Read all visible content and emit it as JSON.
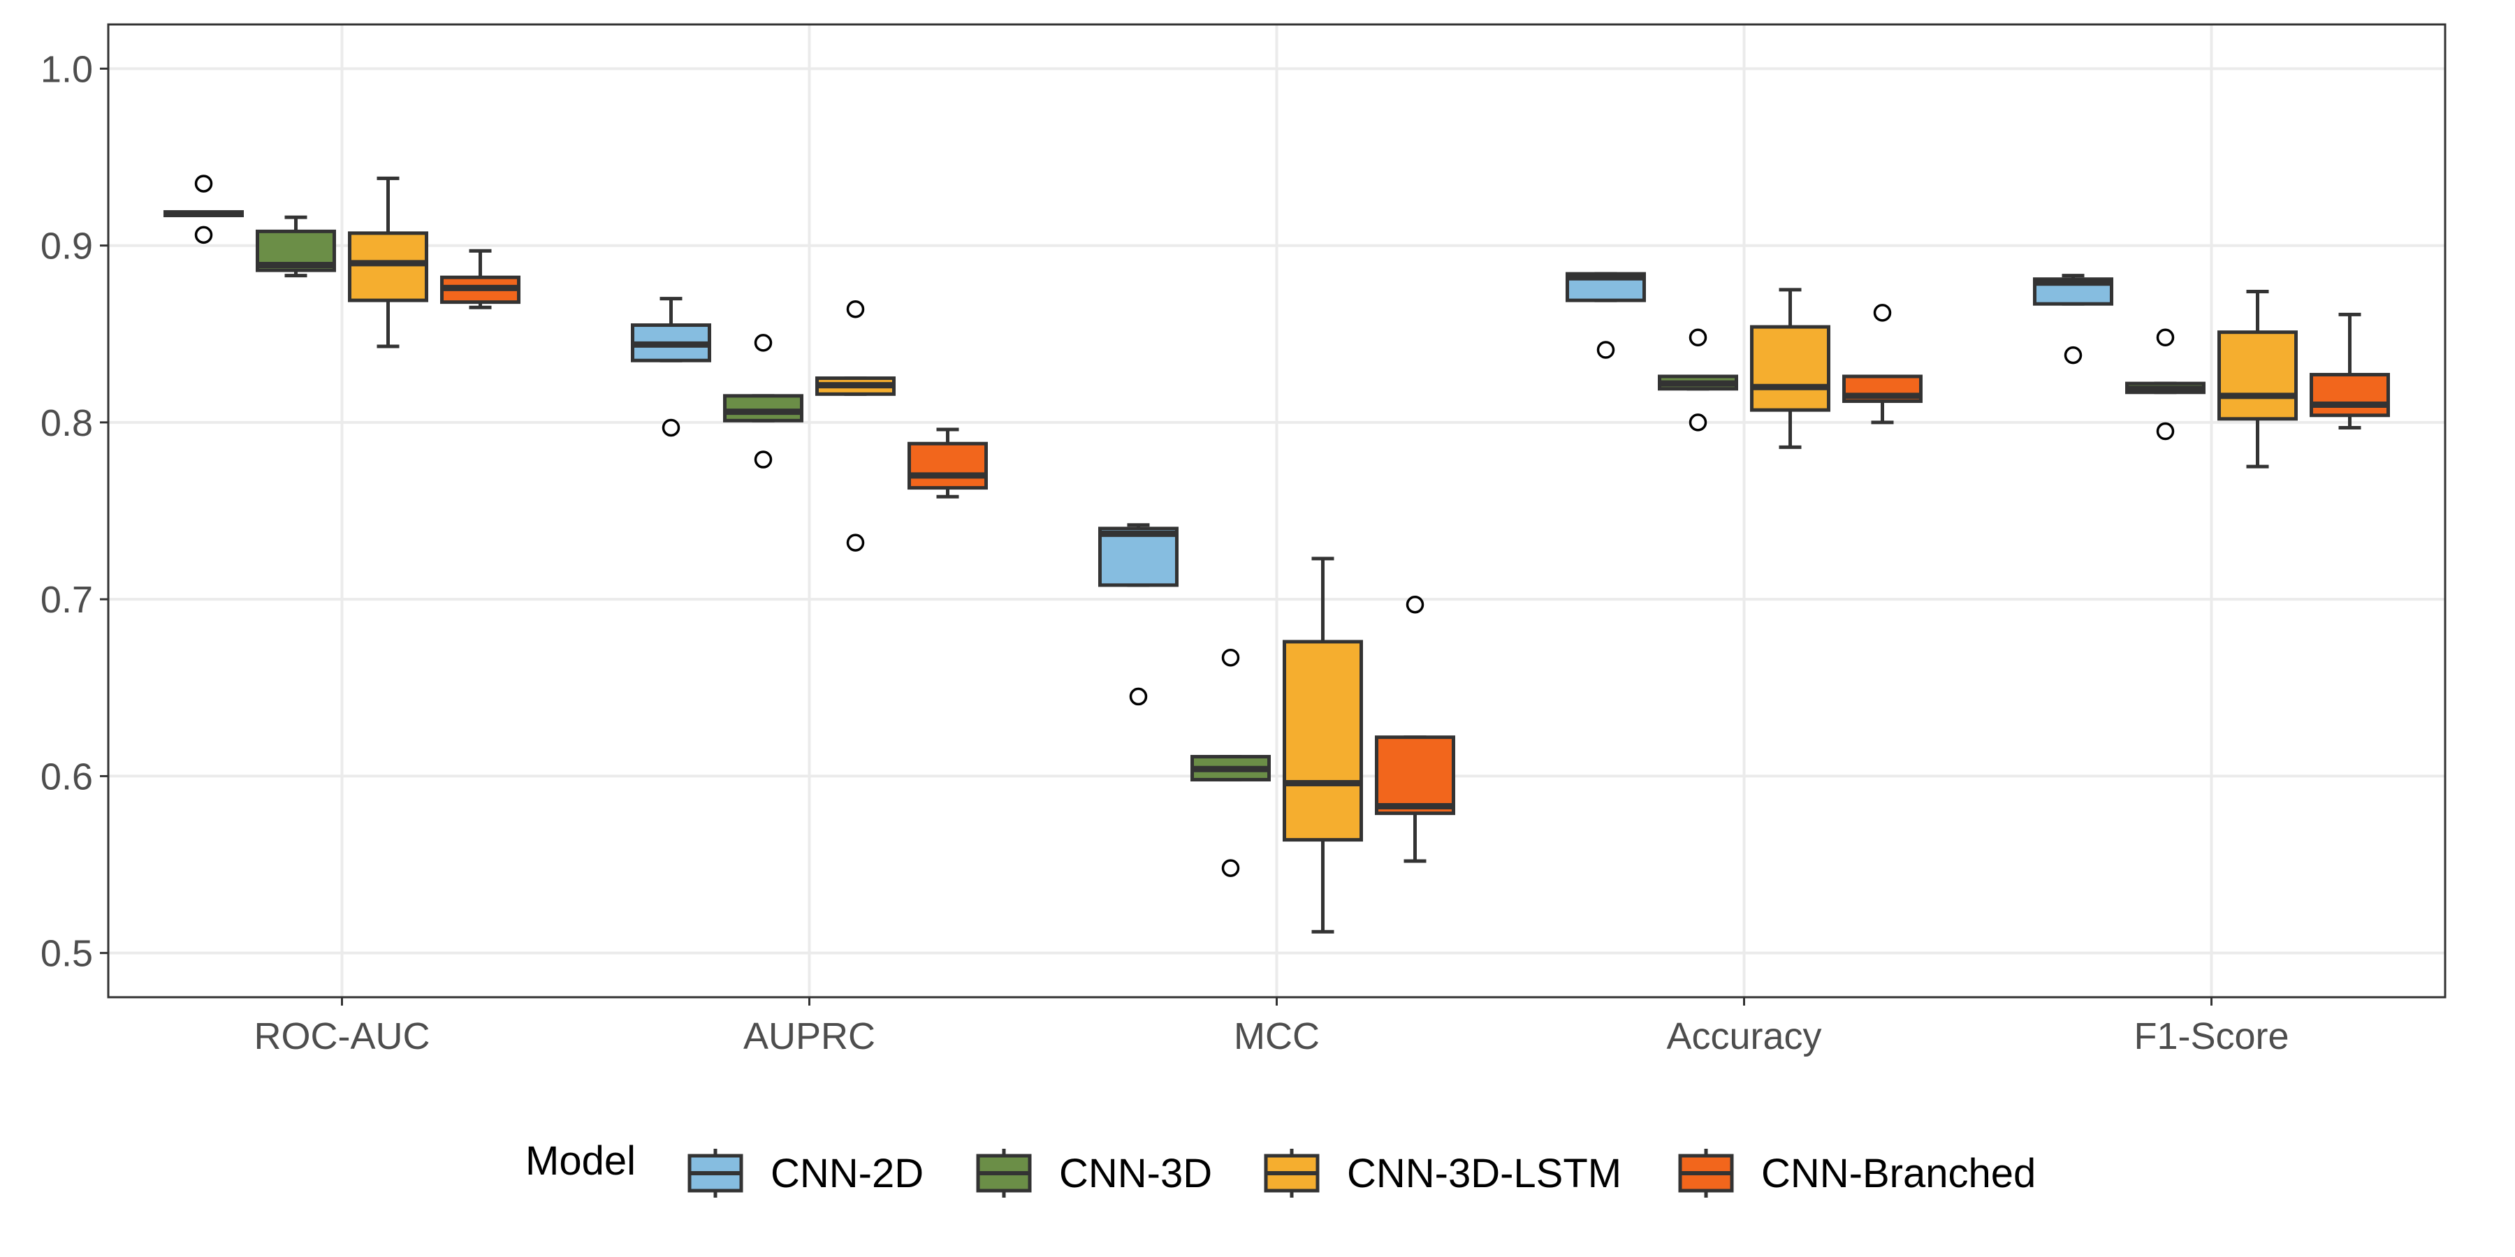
{
  "chart_data": {
    "type": "boxplot",
    "title": "",
    "xlabel": "",
    "ylabel": "",
    "ylim": [
      0.475,
      1.025
    ],
    "y_ticks": [
      "0.5",
      "0.6",
      "0.7",
      "0.8",
      "0.9",
      "1.0"
    ],
    "grid": true,
    "legend_position": "bottom",
    "legend_title": "Model",
    "categories": [
      "ROC-AUC",
      "AUPRC",
      "MCC",
      "Accuracy",
      "F1-Score"
    ],
    "series": [
      {
        "name": "CNN-2D",
        "color": "#86bde0",
        "boxes": [
          {
            "q1": 0.917,
            "median": 0.918,
            "q3": 0.919,
            "whisker_low": 0.917,
            "whisker_high": 0.919,
            "outliers": [
              0.935,
              0.906
            ]
          },
          {
            "q1": 0.835,
            "median": 0.844,
            "q3": 0.855,
            "whisker_low": 0.835,
            "whisker_high": 0.87,
            "outliers": [
              0.797
            ]
          },
          {
            "q1": 0.708,
            "median": 0.737,
            "q3": 0.74,
            "whisker_low": 0.708,
            "whisker_high": 0.742,
            "outliers": [
              0.645
            ]
          },
          {
            "q1": 0.869,
            "median": 0.882,
            "q3": 0.884,
            "whisker_low": 0.869,
            "whisker_high": 0.884,
            "outliers": [
              0.841
            ]
          },
          {
            "q1": 0.867,
            "median": 0.879,
            "q3": 0.881,
            "whisker_low": 0.867,
            "whisker_high": 0.883,
            "outliers": [
              0.838
            ]
          }
        ]
      },
      {
        "name": "CNN-3D",
        "color": "#6b8e47",
        "boxes": [
          {
            "q1": 0.886,
            "median": 0.889,
            "q3": 0.908,
            "whisker_low": 0.883,
            "whisker_high": 0.916,
            "outliers": []
          },
          {
            "q1": 0.801,
            "median": 0.806,
            "q3": 0.815,
            "whisker_low": 0.801,
            "whisker_high": 0.815,
            "outliers": [
              0.845,
              0.779
            ]
          },
          {
            "q1": 0.598,
            "median": 0.604,
            "q3": 0.611,
            "whisker_low": 0.598,
            "whisker_high": 0.611,
            "outliers": [
              0.667,
              0.548
            ]
          },
          {
            "q1": 0.819,
            "median": 0.822,
            "q3": 0.826,
            "whisker_low": 0.819,
            "whisker_high": 0.826,
            "outliers": [
              0.848,
              0.8
            ]
          },
          {
            "q1": 0.817,
            "median": 0.819,
            "q3": 0.822,
            "whisker_low": 0.817,
            "whisker_high": 0.822,
            "outliers": [
              0.848,
              0.795
            ]
          }
        ]
      },
      {
        "name": "CNN-3D-LSTM",
        "color": "#f5ae2f",
        "boxes": [
          {
            "q1": 0.869,
            "median": 0.89,
            "q3": 0.907,
            "whisker_low": 0.843,
            "whisker_high": 0.938,
            "outliers": []
          },
          {
            "q1": 0.816,
            "median": 0.821,
            "q3": 0.825,
            "whisker_low": 0.816,
            "whisker_high": 0.825,
            "outliers": [
              0.864,
              0.732
            ]
          },
          {
            "q1": 0.564,
            "median": 0.596,
            "q3": 0.676,
            "whisker_low": 0.512,
            "whisker_high": 0.723,
            "outliers": []
          },
          {
            "q1": 0.807,
            "median": 0.82,
            "q3": 0.854,
            "whisker_low": 0.786,
            "whisker_high": 0.875,
            "outliers": []
          },
          {
            "q1": 0.802,
            "median": 0.815,
            "q3": 0.851,
            "whisker_low": 0.775,
            "whisker_high": 0.874,
            "outliers": []
          }
        ]
      },
      {
        "name": "CNN-Branched",
        "color": "#f2661c",
        "boxes": [
          {
            "q1": 0.868,
            "median": 0.876,
            "q3": 0.882,
            "whisker_low": 0.865,
            "whisker_high": 0.897,
            "outliers": []
          },
          {
            "q1": 0.763,
            "median": 0.77,
            "q3": 0.788,
            "whisker_low": 0.758,
            "whisker_high": 0.796,
            "outliers": []
          },
          {
            "q1": 0.579,
            "median": 0.583,
            "q3": 0.622,
            "whisker_low": 0.552,
            "whisker_high": 0.622,
            "outliers": [
              0.697
            ]
          },
          {
            "q1": 0.812,
            "median": 0.815,
            "q3": 0.826,
            "whisker_low": 0.8,
            "whisker_high": 0.826,
            "outliers": [
              0.862
            ]
          },
          {
            "q1": 0.804,
            "median": 0.81,
            "q3": 0.827,
            "whisker_low": 0.797,
            "whisker_high": 0.861,
            "outliers": []
          }
        ]
      }
    ]
  }
}
